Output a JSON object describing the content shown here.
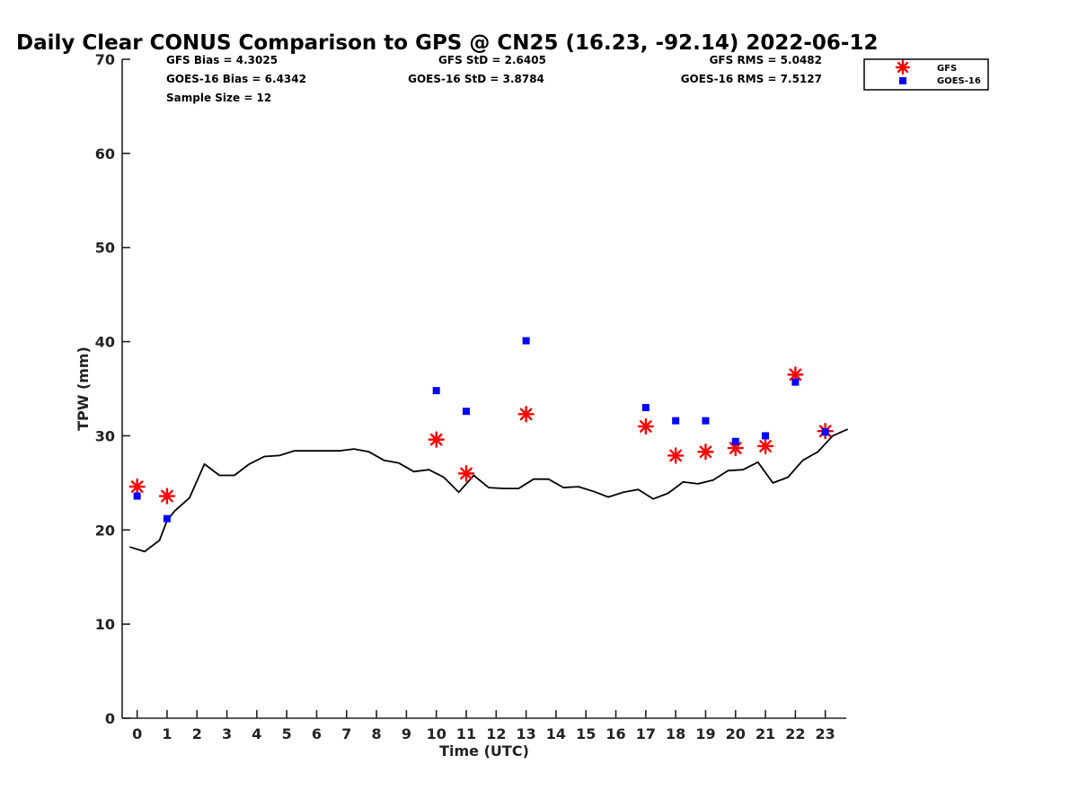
{
  "chart_data": {
    "type": "scatter",
    "title": "Daily Clear CONUS Comparison to GPS @ CN25 (16.23, -92.14) 2022-06-12",
    "xlabel": "Time (UTC)",
    "ylabel": "TPW (mm)",
    "xlim": [
      -0.5,
      23.7
    ],
    "ylim": [
      0,
      70
    ],
    "x_ticks": [
      0,
      1,
      2,
      3,
      4,
      5,
      6,
      7,
      8,
      9,
      10,
      11,
      12,
      13,
      14,
      15,
      16,
      17,
      18,
      19,
      20,
      21,
      22,
      23
    ],
    "y_ticks": [
      0,
      10,
      20,
      30,
      40,
      50,
      60,
      70
    ],
    "grid": false,
    "legend_position": "top-right, outside plot",
    "stats": {
      "gfs_bias": "GFS Bias = 4.3025",
      "goes_bias": "GOES-16 Bias = 6.4342",
      "sample_size": "Sample Size = 12",
      "gfs_std": "GFS StD = 2.6405",
      "goes_std": "GOES-16 StD = 3.8784",
      "gfs_rms": "GFS RMS = 5.0482",
      "goes_rms": "GOES-16 RMS = 7.5127"
    },
    "series": [
      {
        "kind": "line",
        "color": "#000000",
        "x": [
          -0.25,
          0.25,
          0.75,
          1.0,
          1.25,
          1.75,
          2.25,
          2.75,
          3.25,
          3.75,
          4.25,
          4.75,
          5.25,
          5.75,
          6.25,
          6.75,
          7.25,
          7.75,
          8.25,
          8.75,
          9.25,
          9.75,
          10.25,
          10.75,
          11.25,
          11.75,
          12.25,
          12.75,
          13.25,
          13.75,
          14.25,
          14.75,
          15.25,
          15.75,
          16.25,
          16.75,
          17.25,
          17.75,
          18.25,
          18.75,
          19.25,
          19.75,
          20.25,
          20.75,
          21.25,
          21.75,
          22.25,
          22.75,
          23.25,
          23.75
        ],
        "y": [
          18.2,
          17.7,
          18.9,
          21.0,
          22.0,
          23.4,
          27.0,
          25.8,
          25.8,
          27.0,
          27.8,
          27.9,
          28.4,
          28.4,
          28.4,
          28.4,
          28.6,
          28.3,
          27.4,
          27.1,
          26.2,
          26.4,
          25.6,
          24.0,
          25.8,
          24.5,
          24.4,
          24.4,
          25.4,
          25.4,
          24.5,
          24.6,
          24.1,
          23.5,
          24.0,
          24.3,
          23.3,
          23.9,
          25.1,
          24.9,
          25.3,
          26.3,
          26.4,
          27.2,
          25.0,
          25.6,
          27.4,
          28.3,
          30.0,
          30.7
        ]
      },
      {
        "name": "GFS",
        "kind": "scatter",
        "marker": "asterisk",
        "color": "#ff0000",
        "x": [
          0,
          1,
          10,
          11,
          13,
          17,
          18,
          19,
          20,
          21,
          22,
          23
        ],
        "y": [
          24.6,
          23.6,
          29.6,
          26.0,
          32.3,
          31.0,
          27.9,
          28.3,
          28.7,
          28.9,
          36.5,
          30.5
        ]
      },
      {
        "name": "GOES-16",
        "kind": "scatter",
        "marker": "square",
        "color": "#0000ff",
        "x": [
          0,
          1,
          10,
          11,
          13,
          17,
          18,
          19,
          20,
          21,
          22,
          23
        ],
        "y": [
          23.6,
          21.2,
          34.8,
          32.6,
          40.1,
          33.0,
          31.6,
          31.6,
          29.4,
          30.0,
          35.7,
          30.4
        ]
      }
    ]
  }
}
